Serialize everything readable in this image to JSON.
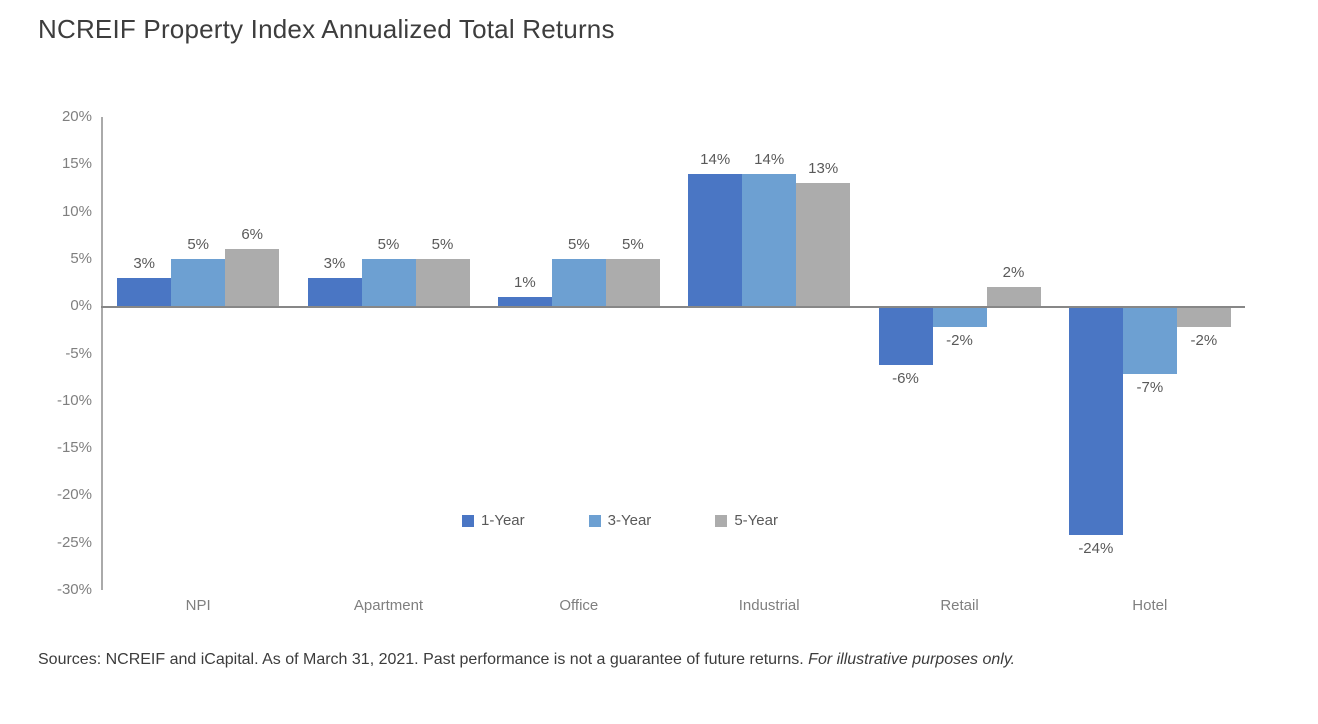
{
  "title": "NCREIF Property Index Annualized Total Returns",
  "footer": {
    "text": "Sources: NCREIF and iCapital. As of March 31, 2021. Past performance is not a guarantee of future returns. ",
    "italic_text": "For illustrative purposes only."
  },
  "colors": {
    "one_year_blue": "#4a76c4",
    "three_year_light_blue": "#6da0d2",
    "five_year_gray": "#acacac",
    "zero_line": "#878787",
    "axis_line": "#aaaaaa",
    "tick_text": "#7f7f7f",
    "data_label_text": "#595959",
    "title_text": "#3d3d3d"
  },
  "chart_data": {
    "type": "bar",
    "title": "NCREIF Property Index Annualized Total Returns",
    "categories": [
      "NPI",
      "Apartment",
      "Office",
      "Industrial",
      "Retail",
      "Hotel"
    ],
    "series": [
      {
        "name": "1-Year",
        "color": "#4a76c4",
        "values": [
          3,
          3,
          1,
          14,
          -6,
          -24
        ],
        "labels": [
          "3%",
          "3%",
          "1%",
          "14%",
          "-6%",
          "-24%"
        ]
      },
      {
        "name": "3-Year",
        "color": "#6da0d2",
        "values": [
          5,
          5,
          5,
          14,
          -2,
          -7
        ],
        "labels": [
          "5%",
          "5%",
          "5%",
          "14%",
          "-2%",
          "-7%"
        ]
      },
      {
        "name": "5-Year",
        "color": "#acacac",
        "values": [
          6,
          5,
          5,
          13,
          2,
          -2
        ],
        "labels": [
          "6%",
          "5%",
          "5%",
          "13%",
          "2%",
          "-2%"
        ]
      }
    ],
    "y_ticks": [
      "20%",
      "15%",
      "10%",
      "5%",
      "0%",
      "-5%",
      "-10%",
      "-15%",
      "-20%",
      "-25%",
      "-30%"
    ],
    "ylim": [
      -30,
      20
    ],
    "xlabel": "",
    "ylabel": "",
    "grid": false,
    "legend_position": "inside-bottom-center",
    "data_labels": true
  }
}
